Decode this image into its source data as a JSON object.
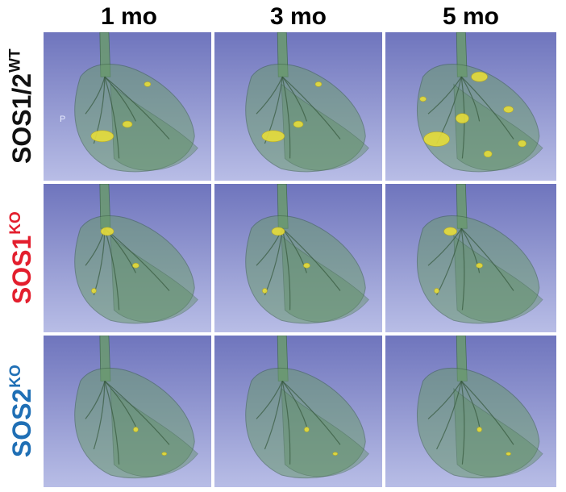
{
  "columns": [
    "1 mo",
    "3 mo",
    "5 mo"
  ],
  "rows": [
    {
      "base": "SOS1/2",
      "sup": "WT",
      "color": "#111111"
    },
    {
      "base": "SOS1",
      "sup": "KO",
      "color": "#e31e2d"
    },
    {
      "base": "SOS2",
      "sup": "KO",
      "color": "#1f6fb5"
    }
  ],
  "panel_mark": "P",
  "colors": {
    "background_top": "#6f75bd",
    "background_bottom": "#b8bde6",
    "lung_tissue": "#6a9a6e",
    "lesion": "#e6dd3a"
  },
  "panels": [
    {
      "row": 0,
      "col": 0,
      "tumor_burden": "moderate"
    },
    {
      "row": 0,
      "col": 1,
      "tumor_burden": "moderate"
    },
    {
      "row": 0,
      "col": 2,
      "tumor_burden": "high"
    },
    {
      "row": 1,
      "col": 0,
      "tumor_burden": "low"
    },
    {
      "row": 1,
      "col": 1,
      "tumor_burden": "low"
    },
    {
      "row": 1,
      "col": 2,
      "tumor_burden": "low"
    },
    {
      "row": 2,
      "col": 0,
      "tumor_burden": "minimal"
    },
    {
      "row": 2,
      "col": 1,
      "tumor_burden": "minimal"
    },
    {
      "row": 2,
      "col": 2,
      "tumor_burden": "minimal"
    }
  ]
}
